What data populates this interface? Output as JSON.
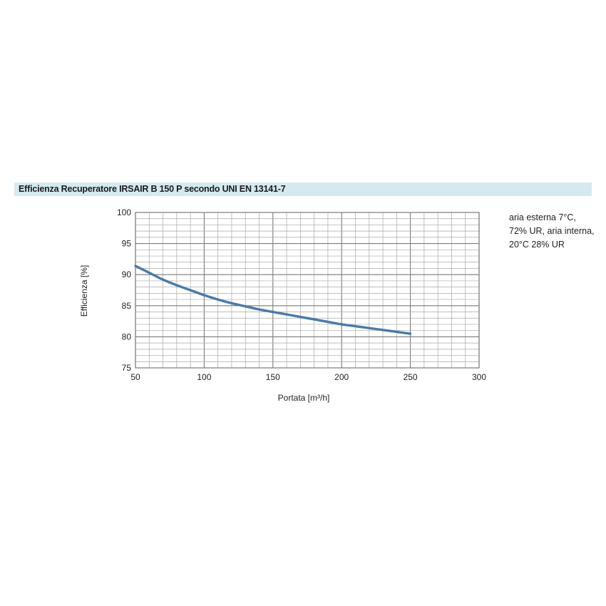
{
  "title": "Efficienza Recuperatore IRSAIR B 150 P secondo UNI EN 13141-7",
  "note_lines": [
    "aria esterna 7°C,",
    "72% UR, aria interna,",
    "20°C 28% UR"
  ],
  "colors": {
    "title_bg": "#d4e9f2",
    "line": "#4a7aa8",
    "grid_major": "#7a7a7a",
    "grid_minor": "#a8a8a8"
  },
  "chart_data": {
    "type": "line",
    "title": "",
    "xlabel": "Portata [m³/h]",
    "ylabel": "Efficienza [%]",
    "xlim": [
      50,
      300
    ],
    "ylim": [
      75,
      100
    ],
    "x_ticks": [
      50,
      100,
      150,
      200,
      250,
      300
    ],
    "y_ticks": [
      75,
      80,
      85,
      90,
      95,
      100
    ],
    "x_minor_step": 10,
    "y_minor_step": 1,
    "grid": true,
    "series": [
      {
        "x": [
          50,
          60,
          70,
          80,
          90,
          100,
          110,
          120,
          130,
          140,
          150,
          160,
          170,
          180,
          190,
          200,
          210,
          220,
          230,
          240,
          250
        ],
        "y": [
          91.4,
          90.3,
          89.2,
          88.3,
          87.5,
          86.7,
          86.0,
          85.4,
          84.9,
          84.4,
          84.0,
          83.6,
          83.2,
          82.8,
          82.4,
          82.0,
          81.7,
          81.4,
          81.1,
          80.8,
          80.5
        ]
      }
    ]
  }
}
